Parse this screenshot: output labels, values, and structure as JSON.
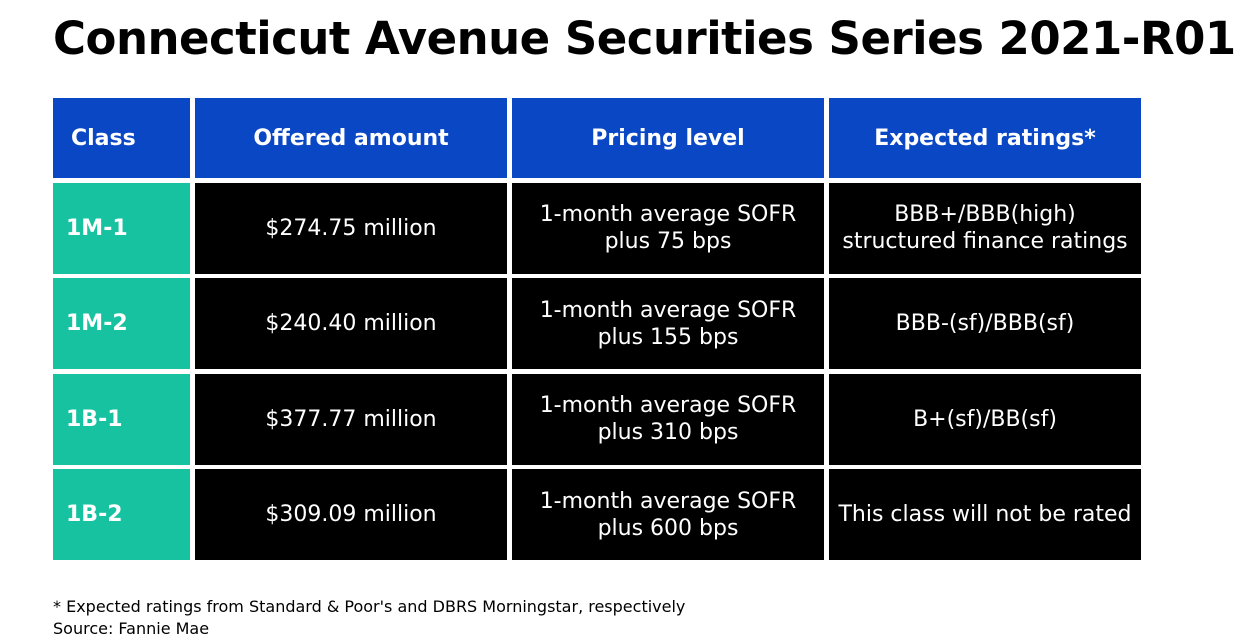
{
  "title": "Connecticut Avenue Securities Series 2021-R01",
  "table": {
    "headers": [
      "Class",
      "Offered amount",
      "Pricing level",
      "Expected ratings*"
    ],
    "rows": [
      [
        "1M-1",
        "$274.75 million",
        "1-month average SOFR plus 75 bps",
        "BBB+/BBB(high) structured finance ratings"
      ],
      [
        "1M-2",
        "$240.40 million",
        "1-month average SOFR plus 155 bps",
        "BBB-(sf)/BBB(sf)"
      ],
      [
        "1B-1",
        "$377.77 million",
        "1-month average SOFR plus 310 bps",
        "B+(sf)/BB(sf)"
      ],
      [
        "1B-2",
        "$309.09 million",
        "1-month average SOFR plus 600 bps",
        "This class will not be rated"
      ]
    ]
  },
  "footer": {
    "note": "* Expected ratings from Standard & Poor's and DBRS Morningstar, respectively",
    "source": "Source: Fannie Mae"
  },
  "colors": {
    "header_bg": "#0a47c4",
    "class_bg": "#16c2a0",
    "cell_bg": "#000000"
  }
}
